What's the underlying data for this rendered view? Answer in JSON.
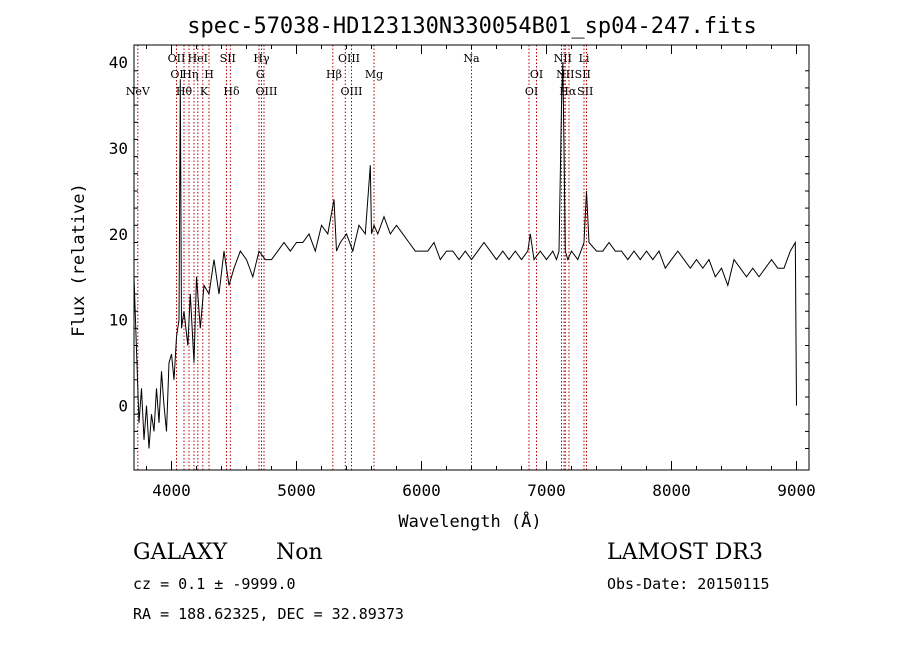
{
  "chart_data": {
    "type": "line",
    "title": "spec-57038-HD123130N330054B01_sp04-247.fits",
    "xlabel": "Wavelength (Å)",
    "ylabel": "Flux (relative)",
    "xlim": [
      3700,
      9100
    ],
    "ylim": [
      -7.5,
      42
    ],
    "x_ticks": [
      4000,
      5000,
      6000,
      7000,
      8000,
      9000
    ],
    "y_ticks": [
      0,
      10,
      20,
      30,
      40
    ],
    "grid": false,
    "series": [
      {
        "x": [
          3700,
          3740,
          3760,
          3780,
          3800,
          3820,
          3840,
          3860,
          3880,
          3900,
          3920,
          3940,
          3960,
          3980,
          4000,
          4020,
          4040,
          4060,
          4070,
          4080,
          4100,
          4130,
          4150,
          4180,
          4200,
          4230,
          4260,
          4300,
          4340,
          4380,
          4420,
          4460,
          4500,
          4550,
          4600,
          4650,
          4700,
          4750,
          4800,
          4850,
          4900,
          4950,
          5000,
          5050,
          5100,
          5150,
          5200,
          5250,
          5300,
          5320,
          5350,
          5400,
          5450,
          5500,
          5550,
          5590,
          5600,
          5620,
          5650,
          5700,
          5750,
          5800,
          5850,
          5900,
          5950,
          6000,
          6050,
          6100,
          6150,
          6200,
          6250,
          6300,
          6350,
          6400,
          6450,
          6500,
          6550,
          6600,
          6650,
          6700,
          6750,
          6800,
          6850,
          6870,
          6900,
          6950,
          7000,
          7050,
          7080,
          7100,
          7120,
          7130,
          7140,
          7150,
          7170,
          7200,
          7250,
          7300,
          7320,
          7340,
          7400,
          7450,
          7500,
          7550,
          7600,
          7650,
          7700,
          7750,
          7800,
          7850,
          7900,
          7950,
          8000,
          8050,
          8100,
          8150,
          8200,
          8250,
          8300,
          8350,
          8400,
          8450,
          8500,
          8550,
          8600,
          8650,
          8700,
          8750,
          8800,
          8850,
          8900,
          8950,
          8990,
          9000
        ],
        "y": [
          15,
          -2,
          2,
          -4,
          0,
          -5,
          -1,
          -3,
          2,
          -2,
          4,
          0,
          -3,
          5,
          6,
          3,
          8,
          10,
          38,
          9,
          11,
          7,
          13,
          5,
          15,
          9,
          14,
          13,
          17,
          13,
          18,
          14,
          16,
          18,
          17,
          15,
          18,
          17,
          17,
          18,
          19,
          18,
          19,
          19,
          20,
          18,
          21,
          20,
          24,
          18,
          19,
          20,
          18,
          21,
          20,
          28,
          20,
          21,
          20,
          22,
          20,
          21,
          20,
          19,
          18,
          18,
          18,
          19,
          17,
          18,
          18,
          17,
          18,
          17,
          18,
          19,
          18,
          17,
          18,
          17,
          18,
          17,
          18,
          20,
          17,
          18,
          17,
          18,
          17,
          18,
          35,
          40,
          30,
          18,
          17,
          18,
          17,
          19,
          25,
          19,
          18,
          18,
          19,
          18,
          18,
          17,
          18,
          17,
          18,
          17,
          18,
          16,
          17,
          18,
          17,
          16,
          17,
          16,
          17,
          15,
          16,
          14,
          17,
          16,
          15,
          16,
          15,
          16,
          17,
          16,
          16,
          18,
          19,
          0
        ]
      }
    ],
    "line_marks": [
      {
        "label": "NeV",
        "x": 3730,
        "row": 3
      },
      {
        "label": "OII",
        "x": 4040,
        "row": 1
      },
      {
        "label": "OI",
        "x": 4045,
        "row": 2
      },
      {
        "label": "Hθ",
        "x": 4100,
        "row": 3
      },
      {
        "label": "Hη",
        "x": 4150,
        "row": 2
      },
      {
        "label": "HeI",
        "x": 4210,
        "row": 1
      },
      {
        "label": "K",
        "x": 4260,
        "row": 3
      },
      {
        "label": "H",
        "x": 4300,
        "row": 2
      },
      {
        "label": "SII",
        "x": 4450,
        "row": 1
      },
      {
        "label": "Hδ",
        "x": 4480,
        "row": 3
      },
      {
        "label": "Hγ",
        "x": 4720,
        "row": 1
      },
      {
        "label": "G",
        "x": 4710,
        "row": 2
      },
      {
        "label": "OIII",
        "x": 4760,
        "row": 3
      },
      {
        "label": "OIII",
        "x": 5420,
        "row": 1
      },
      {
        "label": "Hβ",
        "x": 5300,
        "row": 2
      },
      {
        "label": "OIII",
        "x": 5440,
        "row": 3
      },
      {
        "label": "Mg",
        "x": 5620,
        "row": 2
      },
      {
        "label": "Na",
        "x": 6400,
        "row": 1
      },
      {
        "label": "OI",
        "x": 6920,
        "row": 2
      },
      {
        "label": "OI",
        "x": 6880,
        "row": 3
      },
      {
        "label": "NII",
        "x": 7130,
        "row": 1
      },
      {
        "label": "Li",
        "x": 7300,
        "row": 1
      },
      {
        "label": "NII",
        "x": 7150,
        "row": 2
      },
      {
        "label": "SII",
        "x": 7290,
        "row": 2
      },
      {
        "label": "Hα",
        "x": 7170,
        "row": 3
      },
      {
        "label": "SII",
        "x": 7310,
        "row": 3
      }
    ],
    "line_x": [
      3730,
      4040,
      4100,
      4140,
      4180,
      4210,
      4250,
      4300,
      4440,
      4470,
      4700,
      4720,
      4740,
      5290,
      5390,
      5440,
      5620,
      6400,
      6860,
      6920,
      7120,
      7140,
      7150,
      7180,
      7300,
      7320
    ]
  },
  "info": {
    "class": "GALAXY",
    "subclass": "Non",
    "survey": "LAMOST DR3",
    "cz": "cz = 0.1 ± -9999.0",
    "obs_date": "Obs-Date: 20150115",
    "radec": "RA = 188.62325, DEC =  32.89373"
  }
}
